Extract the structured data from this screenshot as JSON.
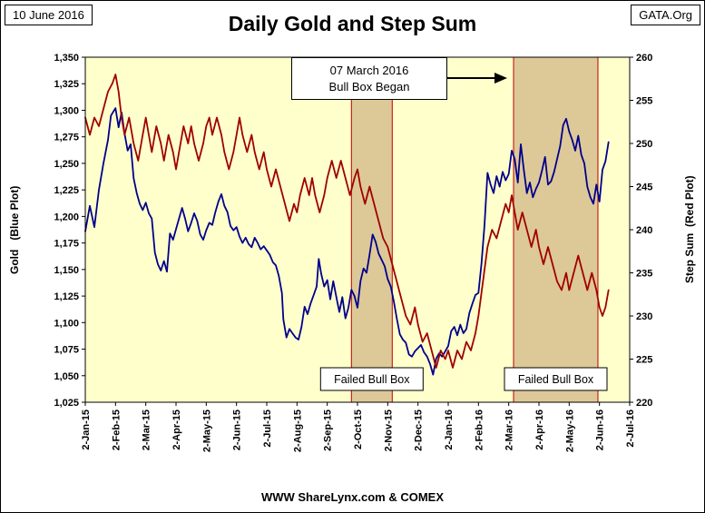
{
  "header": {
    "date_box": "10 June 2016",
    "org_box": "GATA.Org",
    "title": "Daily Gold and Step Sum"
  },
  "footer": {
    "credit": "WWW ShareLynx.com & COMEX"
  },
  "chart_data": {
    "type": "line",
    "title": "Daily Gold and Step Sum",
    "plot_bg": "#FFFFCC",
    "box_fill": "#D9C292",
    "box_stroke": "#C00000",
    "x_range": [
      0,
      18
    ],
    "x_tick_labels": [
      "2-Jan-15",
      "2-Feb-15",
      "2-Mar-15",
      "2-Apr-15",
      "2-May-15",
      "2-Jun-15",
      "2-Jul-15",
      "2-Aug-15",
      "2-Sep-15",
      "2-Oct-15",
      "2-Nov-15",
      "2-Dec-15",
      "2-Jan-16",
      "2-Feb-16",
      "2-Mar-16",
      "2-Apr-16",
      "2-May-16",
      "2-Jun-16",
      "2-Jul-16"
    ],
    "left_axis": {
      "label": "Gold   (Blue Plot)",
      "min": 1025,
      "max": 1350,
      "tick_step": 25,
      "tick_labels": [
        "1,025",
        "1,050",
        "1,075",
        "1,100",
        "1,125",
        "1,150",
        "1,175",
        "1,200",
        "1,225",
        "1,250",
        "1,275",
        "1,300",
        "1,325",
        "1,350"
      ]
    },
    "right_axis": {
      "label": "Step Sum  (Red Plot)",
      "min": 220,
      "max": 260,
      "tick_step": 5,
      "tick_labels": [
        "220",
        "225",
        "230",
        "235",
        "240",
        "245",
        "250",
        "255",
        "260"
      ]
    },
    "annotation": {
      "lines": [
        "07 March 2016",
        "Bull Box Began"
      ]
    },
    "bull_boxes": [
      {
        "x0": 8.8,
        "x1": 10.15,
        "label": "Failed Bull Box"
      },
      {
        "x0": 14.16,
        "x1": 16.95,
        "label": "Failed Bull Box"
      }
    ],
    "series": [
      {
        "name": "Gold",
        "axis": "left",
        "color": "#00008B",
        "points": [
          [
            0,
            1186
          ],
          [
            0.15,
            1210
          ],
          [
            0.3,
            1190
          ],
          [
            0.45,
            1225
          ],
          [
            0.6,
            1250
          ],
          [
            0.75,
            1272
          ],
          [
            0.85,
            1295
          ],
          [
            1.0,
            1302
          ],
          [
            1.1,
            1284
          ],
          [
            1.2,
            1298
          ],
          [
            1.3,
            1278
          ],
          [
            1.4,
            1262
          ],
          [
            1.5,
            1268
          ],
          [
            1.6,
            1236
          ],
          [
            1.7,
            1222
          ],
          [
            1.8,
            1212
          ],
          [
            1.9,
            1206
          ],
          [
            2.0,
            1213
          ],
          [
            2.1,
            1203
          ],
          [
            2.2,
            1198
          ],
          [
            2.3,
            1166
          ],
          [
            2.4,
            1155
          ],
          [
            2.5,
            1149
          ],
          [
            2.6,
            1158
          ],
          [
            2.7,
            1148
          ],
          [
            2.8,
            1184
          ],
          [
            2.9,
            1178
          ],
          [
            3.0,
            1188
          ],
          [
            3.1,
            1198
          ],
          [
            3.2,
            1208
          ],
          [
            3.3,
            1198
          ],
          [
            3.4,
            1186
          ],
          [
            3.5,
            1194
          ],
          [
            3.6,
            1203
          ],
          [
            3.7,
            1196
          ],
          [
            3.8,
            1183
          ],
          [
            3.9,
            1178
          ],
          [
            4.0,
            1187
          ],
          [
            4.1,
            1194
          ],
          [
            4.2,
            1192
          ],
          [
            4.3,
            1204
          ],
          [
            4.4,
            1214
          ],
          [
            4.5,
            1221
          ],
          [
            4.6,
            1210
          ],
          [
            4.7,
            1204
          ],
          [
            4.8,
            1191
          ],
          [
            4.9,
            1187
          ],
          [
            5.0,
            1190
          ],
          [
            5.1,
            1181
          ],
          [
            5.2,
            1175
          ],
          [
            5.3,
            1180
          ],
          [
            5.4,
            1174
          ],
          [
            5.5,
            1171
          ],
          [
            5.6,
            1180
          ],
          [
            5.7,
            1175
          ],
          [
            5.8,
            1169
          ],
          [
            5.9,
            1172
          ],
          [
            6.0,
            1168
          ],
          [
            6.1,
            1164
          ],
          [
            6.2,
            1157
          ],
          [
            6.3,
            1154
          ],
          [
            6.4,
            1144
          ],
          [
            6.5,
            1128
          ],
          [
            6.55,
            1103
          ],
          [
            6.65,
            1086
          ],
          [
            6.75,
            1094
          ],
          [
            6.85,
            1090
          ],
          [
            6.95,
            1086
          ],
          [
            7.05,
            1084
          ],
          [
            7.15,
            1096
          ],
          [
            7.25,
            1115
          ],
          [
            7.35,
            1108
          ],
          [
            7.45,
            1118
          ],
          [
            7.55,
            1126
          ],
          [
            7.65,
            1134
          ],
          [
            7.72,
            1160
          ],
          [
            7.8,
            1146
          ],
          [
            7.9,
            1134
          ],
          [
            8.0,
            1140
          ],
          [
            8.1,
            1122
          ],
          [
            8.2,
            1139
          ],
          [
            8.3,
            1124
          ],
          [
            8.4,
            1110
          ],
          [
            8.5,
            1124
          ],
          [
            8.6,
            1104
          ],
          [
            8.7,
            1114
          ],
          [
            8.8,
            1131
          ],
          [
            8.9,
            1125
          ],
          [
            9.0,
            1114
          ],
          [
            9.1,
            1139
          ],
          [
            9.2,
            1151
          ],
          [
            9.3,
            1147
          ],
          [
            9.4,
            1164
          ],
          [
            9.5,
            1183
          ],
          [
            9.6,
            1176
          ],
          [
            9.7,
            1165
          ],
          [
            9.8,
            1159
          ],
          [
            9.9,
            1153
          ],
          [
            10.0,
            1141
          ],
          [
            10.1,
            1134
          ],
          [
            10.2,
            1120
          ],
          [
            10.3,
            1104
          ],
          [
            10.4,
            1089
          ],
          [
            10.5,
            1084
          ],
          [
            10.6,
            1081
          ],
          [
            10.7,
            1070
          ],
          [
            10.8,
            1068
          ],
          [
            10.9,
            1073
          ],
          [
            11.0,
            1076
          ],
          [
            11.1,
            1079
          ],
          [
            11.2,
            1072
          ],
          [
            11.3,
            1068
          ],
          [
            11.4,
            1061
          ],
          [
            11.5,
            1051
          ],
          [
            11.6,
            1066
          ],
          [
            11.7,
            1071
          ],
          [
            11.8,
            1068
          ],
          [
            11.9,
            1073
          ],
          [
            12.0,
            1078
          ],
          [
            12.1,
            1092
          ],
          [
            12.2,
            1096
          ],
          [
            12.3,
            1088
          ],
          [
            12.4,
            1098
          ],
          [
            12.5,
            1090
          ],
          [
            12.6,
            1094
          ],
          [
            12.7,
            1109
          ],
          [
            12.8,
            1118
          ],
          [
            12.9,
            1126
          ],
          [
            13.0,
            1128
          ],
          [
            13.1,
            1156
          ],
          [
            13.2,
            1192
          ],
          [
            13.3,
            1241
          ],
          [
            13.4,
            1230
          ],
          [
            13.5,
            1222
          ],
          [
            13.6,
            1238
          ],
          [
            13.7,
            1228
          ],
          [
            13.8,
            1242
          ],
          [
            13.9,
            1234
          ],
          [
            14.0,
            1240
          ],
          [
            14.1,
            1262
          ],
          [
            14.2,
            1254
          ],
          [
            14.3,
            1232
          ],
          [
            14.4,
            1268
          ],
          [
            14.5,
            1244
          ],
          [
            14.6,
            1222
          ],
          [
            14.7,
            1232
          ],
          [
            14.8,
            1218
          ],
          [
            14.9,
            1226
          ],
          [
            15.0,
            1232
          ],
          [
            15.1,
            1243
          ],
          [
            15.2,
            1256
          ],
          [
            15.3,
            1230
          ],
          [
            15.4,
            1233
          ],
          [
            15.5,
            1242
          ],
          [
            15.6,
            1254
          ],
          [
            15.7,
            1266
          ],
          [
            15.8,
            1286
          ],
          [
            15.9,
            1292
          ],
          [
            16.0,
            1280
          ],
          [
            16.1,
            1272
          ],
          [
            16.2,
            1262
          ],
          [
            16.3,
            1276
          ],
          [
            16.4,
            1258
          ],
          [
            16.5,
            1250
          ],
          [
            16.6,
            1228
          ],
          [
            16.7,
            1218
          ],
          [
            16.8,
            1212
          ],
          [
            16.9,
            1230
          ],
          [
            17.0,
            1214
          ],
          [
            17.1,
            1244
          ],
          [
            17.2,
            1252
          ],
          [
            17.3,
            1270
          ]
        ]
      },
      {
        "name": "Step Sum",
        "axis": "right",
        "color": "#A00000",
        "points": [
          [
            0,
            253
          ],
          [
            0.15,
            251
          ],
          [
            0.3,
            253
          ],
          [
            0.45,
            252
          ],
          [
            0.6,
            254
          ],
          [
            0.75,
            256
          ],
          [
            0.9,
            257
          ],
          [
            1.0,
            258
          ],
          [
            1.1,
            256
          ],
          [
            1.2,
            253
          ],
          [
            1.3,
            251
          ],
          [
            1.45,
            253
          ],
          [
            1.6,
            250
          ],
          [
            1.75,
            248
          ],
          [
            1.9,
            251
          ],
          [
            2.0,
            253
          ],
          [
            2.1,
            251
          ],
          [
            2.2,
            249
          ],
          [
            2.35,
            252
          ],
          [
            2.5,
            250
          ],
          [
            2.6,
            248
          ],
          [
            2.75,
            251
          ],
          [
            2.9,
            249
          ],
          [
            3.0,
            247
          ],
          [
            3.1,
            249
          ],
          [
            3.25,
            252
          ],
          [
            3.4,
            250
          ],
          [
            3.5,
            252
          ],
          [
            3.6,
            250
          ],
          [
            3.75,
            248
          ],
          [
            3.9,
            250
          ],
          [
            4.0,
            252
          ],
          [
            4.1,
            253
          ],
          [
            4.2,
            251
          ],
          [
            4.35,
            253
          ],
          [
            4.5,
            251
          ],
          [
            4.6,
            249
          ],
          [
            4.75,
            247
          ],
          [
            4.9,
            249
          ],
          [
            5.0,
            251
          ],
          [
            5.1,
            253
          ],
          [
            5.2,
            251
          ],
          [
            5.35,
            249
          ],
          [
            5.5,
            251
          ],
          [
            5.6,
            249
          ],
          [
            5.75,
            247
          ],
          [
            5.9,
            249
          ],
          [
            6.0,
            247
          ],
          [
            6.15,
            245
          ],
          [
            6.3,
            247
          ],
          [
            6.45,
            245
          ],
          [
            6.6,
            243
          ],
          [
            6.75,
            241
          ],
          [
            6.9,
            243
          ],
          [
            7.0,
            242
          ],
          [
            7.1,
            244
          ],
          [
            7.25,
            246
          ],
          [
            7.4,
            244
          ],
          [
            7.5,
            246
          ],
          [
            7.6,
            244
          ],
          [
            7.75,
            242
          ],
          [
            7.9,
            244
          ],
          [
            8.0,
            246
          ],
          [
            8.15,
            248
          ],
          [
            8.3,
            246
          ],
          [
            8.45,
            248
          ],
          [
            8.6,
            246
          ],
          [
            8.75,
            244
          ],
          [
            8.9,
            246
          ],
          [
            9.0,
            247
          ],
          [
            9.1,
            245
          ],
          [
            9.25,
            243
          ],
          [
            9.4,
            245
          ],
          [
            9.55,
            243
          ],
          [
            9.7,
            241
          ],
          [
            9.85,
            239
          ],
          [
            10.0,
            238
          ],
          [
            10.15,
            236
          ],
          [
            10.3,
            234
          ],
          [
            10.45,
            232
          ],
          [
            10.6,
            230
          ],
          [
            10.75,
            229
          ],
          [
            10.9,
            231
          ],
          [
            11.0,
            229
          ],
          [
            11.15,
            227
          ],
          [
            11.3,
            228
          ],
          [
            11.45,
            226
          ],
          [
            11.6,
            224
          ],
          [
            11.75,
            226
          ],
          [
            11.9,
            225
          ],
          [
            12.0,
            226
          ],
          [
            12.15,
            224
          ],
          [
            12.3,
            226
          ],
          [
            12.45,
            225
          ],
          [
            12.6,
            227
          ],
          [
            12.75,
            226
          ],
          [
            12.9,
            228
          ],
          [
            13.0,
            230
          ],
          [
            13.15,
            234
          ],
          [
            13.3,
            238
          ],
          [
            13.45,
            240
          ],
          [
            13.6,
            239
          ],
          [
            13.75,
            241
          ],
          [
            13.9,
            243
          ],
          [
            14.0,
            242
          ],
          [
            14.1,
            244
          ],
          [
            14.2,
            242
          ],
          [
            14.3,
            240
          ],
          [
            14.45,
            242
          ],
          [
            14.6,
            240
          ],
          [
            14.75,
            238
          ],
          [
            14.9,
            240
          ],
          [
            15.0,
            238
          ],
          [
            15.15,
            236
          ],
          [
            15.3,
            238
          ],
          [
            15.45,
            236
          ],
          [
            15.6,
            234
          ],
          [
            15.75,
            233
          ],
          [
            15.9,
            235
          ],
          [
            16.0,
            233
          ],
          [
            16.15,
            235
          ],
          [
            16.3,
            237
          ],
          [
            16.45,
            235
          ],
          [
            16.6,
            233
          ],
          [
            16.75,
            235
          ],
          [
            16.9,
            233
          ],
          [
            17.0,
            231
          ],
          [
            17.1,
            230
          ],
          [
            17.2,
            231
          ],
          [
            17.3,
            233
          ]
        ]
      }
    ]
  }
}
